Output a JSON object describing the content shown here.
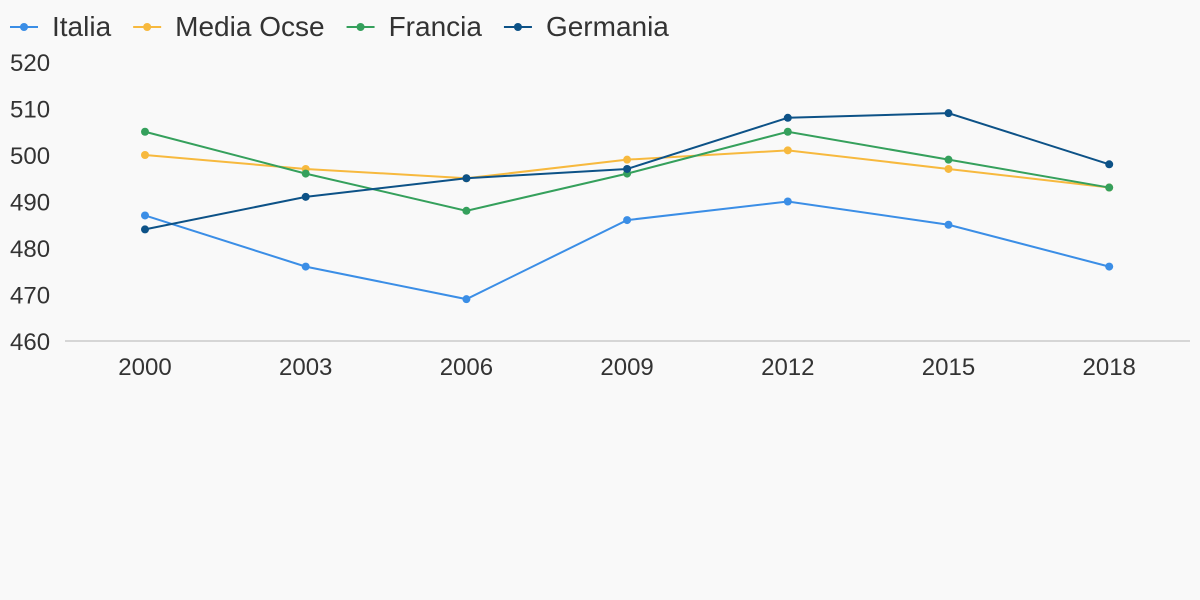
{
  "chart_data": {
    "type": "line",
    "title": "",
    "xlabel": "",
    "ylabel": "",
    "categories": [
      "2000",
      "2003",
      "2006",
      "2009",
      "2012",
      "2015",
      "2018"
    ],
    "ylim": [
      460,
      520
    ],
    "yticks": [
      460,
      470,
      480,
      490,
      500,
      510,
      520
    ],
    "grid": false,
    "legend_position": "top-left",
    "series": [
      {
        "name": "Italia",
        "color": "#3b8ee6",
        "values": [
          487,
          476,
          469,
          486,
          490,
          485,
          476
        ]
      },
      {
        "name": "Media Ocse",
        "color": "#f7b93e",
        "values": [
          500,
          497,
          495,
          499,
          501,
          497,
          493
        ]
      },
      {
        "name": "Francia",
        "color": "#35a05c",
        "values": [
          505,
          496,
          488,
          496,
          505,
          499,
          493
        ]
      },
      {
        "name": "Germania",
        "color": "#0d5287",
        "values": [
          484,
          491,
          495,
          497,
          508,
          509,
          498
        ]
      }
    ]
  }
}
